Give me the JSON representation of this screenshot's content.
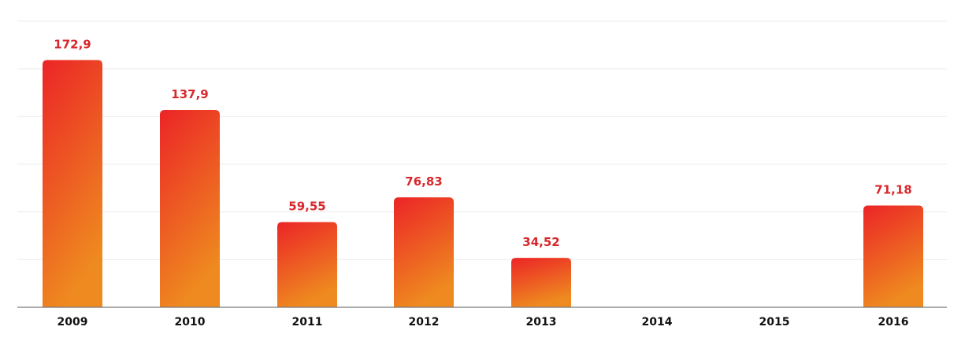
{
  "chart_data": {
    "type": "bar",
    "title": "",
    "xlabel": "",
    "ylabel": "",
    "categories": [
      "2009",
      "2010",
      "2011",
      "2012",
      "2013",
      "2014",
      "2015",
      "2016"
    ],
    "values": [
      172.9,
      137.9,
      59.55,
      76.83,
      34.52,
      null,
      null,
      71.18
    ],
    "value_labels": [
      "172,9",
      "137,9",
      "59,55",
      "76,83",
      "34,52",
      "",
      "",
      "71,18"
    ],
    "ylim": [
      0,
      200
    ],
    "y_grid_step": 33.33,
    "grid": true,
    "legend": "none",
    "colors": {
      "bar_top": "#ec2427",
      "bar_bottom": "#ee8a1f",
      "label": "#d8272b",
      "grid": "#ececec",
      "axis": "#7a7a7a",
      "tick_text": "#111111"
    }
  }
}
